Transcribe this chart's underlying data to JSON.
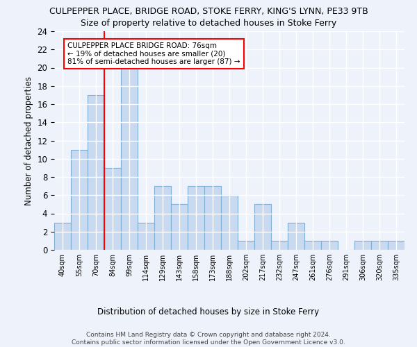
{
  "title1": "CULPEPPER PLACE, BRIDGE ROAD, STOKE FERRY, KING'S LYNN, PE33 9TB",
  "title2": "Size of property relative to detached houses in Stoke Ferry",
  "xlabel": "Distribution of detached houses by size in Stoke Ferry",
  "ylabel": "Number of detached properties",
  "bar_labels": [
    "40sqm",
    "55sqm",
    "70sqm",
    "84sqm",
    "99sqm",
    "114sqm",
    "129sqm",
    "143sqm",
    "158sqm",
    "173sqm",
    "188sqm",
    "202sqm",
    "217sqm",
    "232sqm",
    "247sqm",
    "261sqm",
    "276sqm",
    "291sqm",
    "306sqm",
    "320sqm",
    "335sqm"
  ],
  "bar_values": [
    3,
    11,
    17,
    9,
    20,
    3,
    7,
    5,
    7,
    7,
    6,
    1,
    5,
    1,
    3,
    1,
    1,
    0,
    1,
    1,
    1
  ],
  "bar_color": "#c9d9f0",
  "bar_edge_color": "#7fafd4",
  "vline_color": "red",
  "ylim": [
    0,
    24
  ],
  "yticks": [
    0,
    2,
    4,
    6,
    8,
    10,
    12,
    14,
    16,
    18,
    20,
    22,
    24
  ],
  "annotation_text": "CULPEPPER PLACE BRIDGE ROAD: 76sqm\n← 19% of detached houses are smaller (20)\n81% of semi-detached houses are larger (87) →",
  "annotation_box_color": "white",
  "annotation_box_edge": "red",
  "footer1": "Contains HM Land Registry data © Crown copyright and database right 2024.",
  "footer2": "Contains public sector information licensed under the Open Government Licence v3.0.",
  "bg_color": "#eef2fb",
  "grid_color": "white"
}
